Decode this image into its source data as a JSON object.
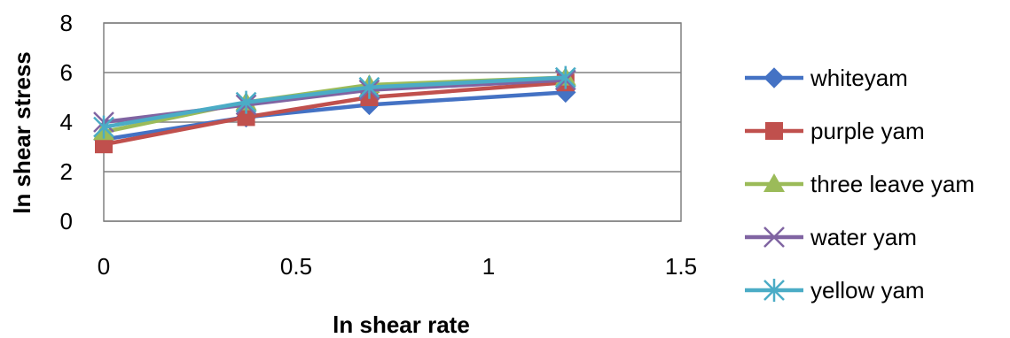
{
  "chart_data": {
    "type": "line",
    "xlabel": "ln shear rate",
    "ylabel": "ln shear stress",
    "xlim": [
      0,
      1.5
    ],
    "ylim": [
      0,
      8
    ],
    "xticks": [
      "0",
      "0.5",
      "1",
      "1.5"
    ],
    "yticks": [
      "0",
      "2",
      "4",
      "6",
      "8"
    ],
    "grid": "horizontal",
    "legend": "right",
    "series": [
      {
        "name": "whiteyam",
        "color": "#4472C4",
        "marker": "diamond",
        "x": [
          0,
          0.37,
          0.69,
          1.2
        ],
        "y": [
          3.3,
          4.2,
          4.7,
          5.2
        ]
      },
      {
        "name": "purple yam",
        "color": "#C0504D",
        "marker": "square",
        "x": [
          0,
          0.37,
          0.69,
          1.2
        ],
        "y": [
          3.1,
          4.2,
          5.0,
          5.6
        ]
      },
      {
        "name": "three leave yam",
        "color": "#9BBB59",
        "marker": "triangle",
        "x": [
          0,
          0.37,
          0.69,
          1.2
        ],
        "y": [
          3.6,
          4.8,
          5.5,
          5.8
        ]
      },
      {
        "name": "water yam",
        "color": "#8064A2",
        "marker": "x",
        "x": [
          0,
          0.37,
          0.69,
          1.2
        ],
        "y": [
          4.0,
          4.7,
          5.3,
          5.7
        ]
      },
      {
        "name": "yellow yam",
        "color": "#4BACC6",
        "marker": "asterisk",
        "x": [
          0,
          0.37,
          0.69,
          1.2
        ],
        "y": [
          3.8,
          4.8,
          5.4,
          5.8
        ]
      }
    ]
  }
}
